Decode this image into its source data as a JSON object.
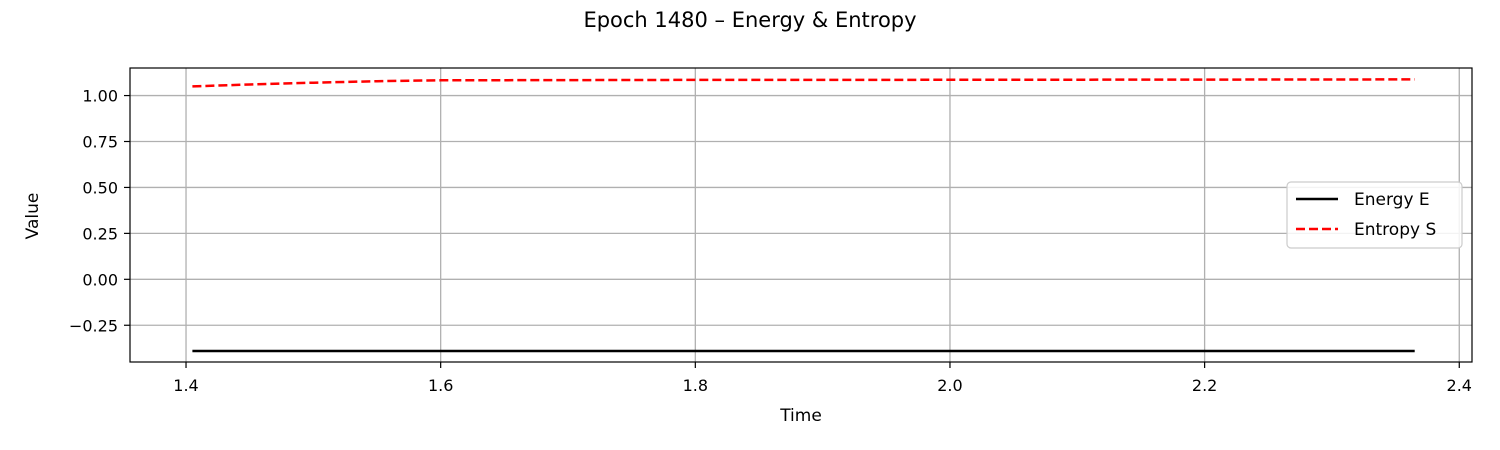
{
  "chart_data": {
    "type": "line",
    "title": "Epoch 1480 – Energy & Entropy",
    "xlabel": "Time",
    "ylabel": "Value",
    "xlim": [
      1.356,
      2.41
    ],
    "ylim": [
      -0.45,
      1.15
    ],
    "xticks": [
      1.4,
      1.6,
      1.8,
      2.0,
      2.2,
      2.4
    ],
    "xtick_labels": [
      "1.4",
      "1.6",
      "1.8",
      "2.0",
      "2.2",
      "2.4"
    ],
    "yticks": [
      -0.25,
      0.0,
      0.25,
      0.5,
      0.75,
      1.0
    ],
    "ytick_labels": [
      "−0.25",
      "0.00",
      "0.25",
      "0.50",
      "0.75",
      "1.00"
    ],
    "grid": true,
    "legend_position": "center-right",
    "series": [
      {
        "name": "Energy E",
        "color": "#000000",
        "style": "solid",
        "x": [
          1.405,
          1.6,
          1.8,
          2.0,
          2.2,
          2.365
        ],
        "y": [
          -0.39,
          -0.39,
          -0.39,
          -0.39,
          -0.39,
          -0.39
        ]
      },
      {
        "name": "Entropy S",
        "color": "#ff0000",
        "style": "dashed",
        "x": [
          1.405,
          1.45,
          1.5,
          1.55,
          1.6,
          1.8,
          2.0,
          2.2,
          2.365
        ],
        "y": [
          1.05,
          1.06,
          1.07,
          1.078,
          1.083,
          1.085,
          1.086,
          1.087,
          1.088
        ]
      }
    ]
  }
}
